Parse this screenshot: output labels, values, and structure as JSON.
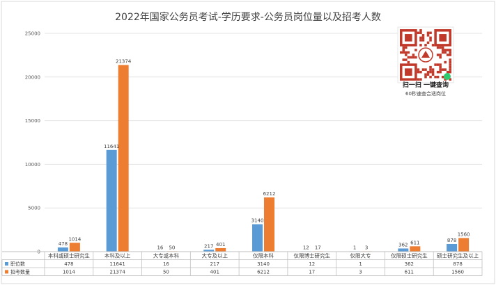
{
  "chart_data": {
    "type": "bar",
    "title": "2022年国家公务员考试-学历要求-公务员岗位量以及招考人数",
    "categories": [
      "本科或硕士研究生",
      "本科及以上",
      "大专或本科",
      "大专及以上",
      "仅限本科",
      "仅限博士研究生",
      "仅限大专",
      "仅限硕士研究生",
      "硕士研究生及以上"
    ],
    "series": [
      {
        "name": "职位数",
        "color": "#5b9bd5",
        "values": [
          478,
          11641,
          16,
          217,
          3140,
          12,
          1,
          362,
          878
        ]
      },
      {
        "name": "招考数量",
        "color": "#ed7d31",
        "values": [
          1014,
          21374,
          50,
          401,
          6212,
          17,
          3,
          611,
          1560
        ]
      }
    ],
    "yticks": [
      0,
      5000,
      10000,
      15000,
      20000,
      25000
    ],
    "ylim": [
      0,
      25000
    ],
    "grid": true,
    "legend": "data-table"
  },
  "promo": {
    "line1": "扫一扫 一键查询",
    "line2": "60秒速查合适岗位"
  }
}
